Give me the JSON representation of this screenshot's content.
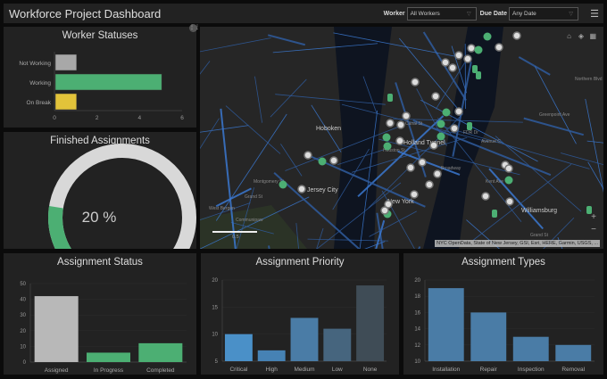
{
  "header": {
    "title": "Workforce Project Dashboard",
    "worker_label": "Worker",
    "worker_value": "All Workers",
    "due_label": "Due Date",
    "due_value": "Any Date",
    "menu_icon": "hamburger-icon"
  },
  "worker_statuses": {
    "title": "Worker Statuses",
    "chart_data": {
      "type": "bar",
      "orientation": "horizontal",
      "categories": [
        "Not Working",
        "Working",
        "On Break"
      ],
      "values": [
        1,
        5,
        1
      ],
      "colors": [
        "#a8a8a8",
        "#4caf73",
        "#e2c33a"
      ],
      "xlim": [
        0,
        6
      ],
      "ticks": [
        "0",
        "2",
        "4",
        "6"
      ]
    }
  },
  "finished": {
    "title": "Finished Assignments",
    "value": 20,
    "label": "20 %",
    "fill_color": "#4caf73",
    "track_color": "#d8d8d8"
  },
  "map": {
    "labels": [
      "Hoboken",
      "Holland Tunnel",
      "Jersey City",
      "New York",
      "Williamsburg",
      "West Bergen",
      "Communipaw",
      "Montgomery St",
      "Grand St",
      "Broadway",
      "Avenue C",
      "Kent Ave",
      "Greenpoint Ave",
      "Northern Blvd",
      "Grand St",
      "Canal St",
      "Houston St",
      "FDR Dr"
    ],
    "attribution": "NYC OpenData, State of New Jersey, GSI, Esri, HERE, Garmin, USGS, ...",
    "zoom_in": "+",
    "zoom_out": "−",
    "scale_label": "0.5"
  },
  "assignment_status": {
    "title": "Assignment Status",
    "chart_data": {
      "type": "bar",
      "categories": [
        "Assigned",
        "In Progress",
        "Completed"
      ],
      "values": [
        42,
        6,
        12
      ],
      "colors": [
        "#b8b8b8",
        "#4caf73",
        "#4caf73"
      ],
      "ylim": [
        0,
        50
      ],
      "ticks": [
        "0",
        "10",
        "20",
        "30",
        "40",
        "50"
      ]
    }
  },
  "assignment_priority": {
    "title": "Assignment Priority",
    "chart_data": {
      "type": "bar",
      "categories": [
        "Critical",
        "High",
        "Medium",
        "Low",
        "None"
      ],
      "values": [
        10,
        7,
        13,
        11,
        19
      ],
      "colors": [
        "#4a90c8",
        "#4682b4",
        "#4a7ca6",
        "#46657e",
        "#3f4c56"
      ],
      "ylim": [
        5,
        20
      ],
      "ticks": [
        "5",
        "10",
        "15",
        "20"
      ]
    }
  },
  "assignment_types": {
    "title": "Assignment Types",
    "chart_data": {
      "type": "bar",
      "categories": [
        "Installation",
        "Repair",
        "Inspection",
        "Removal"
      ],
      "values": [
        19,
        16,
        13,
        12
      ],
      "colors": [
        "#4a7ca6",
        "#4a7ca6",
        "#4a7ca6",
        "#4a7ca6"
      ],
      "ylim": [
        10,
        20
      ],
      "ticks": [
        "10",
        "12",
        "14",
        "16",
        "18",
        "20"
      ]
    }
  }
}
